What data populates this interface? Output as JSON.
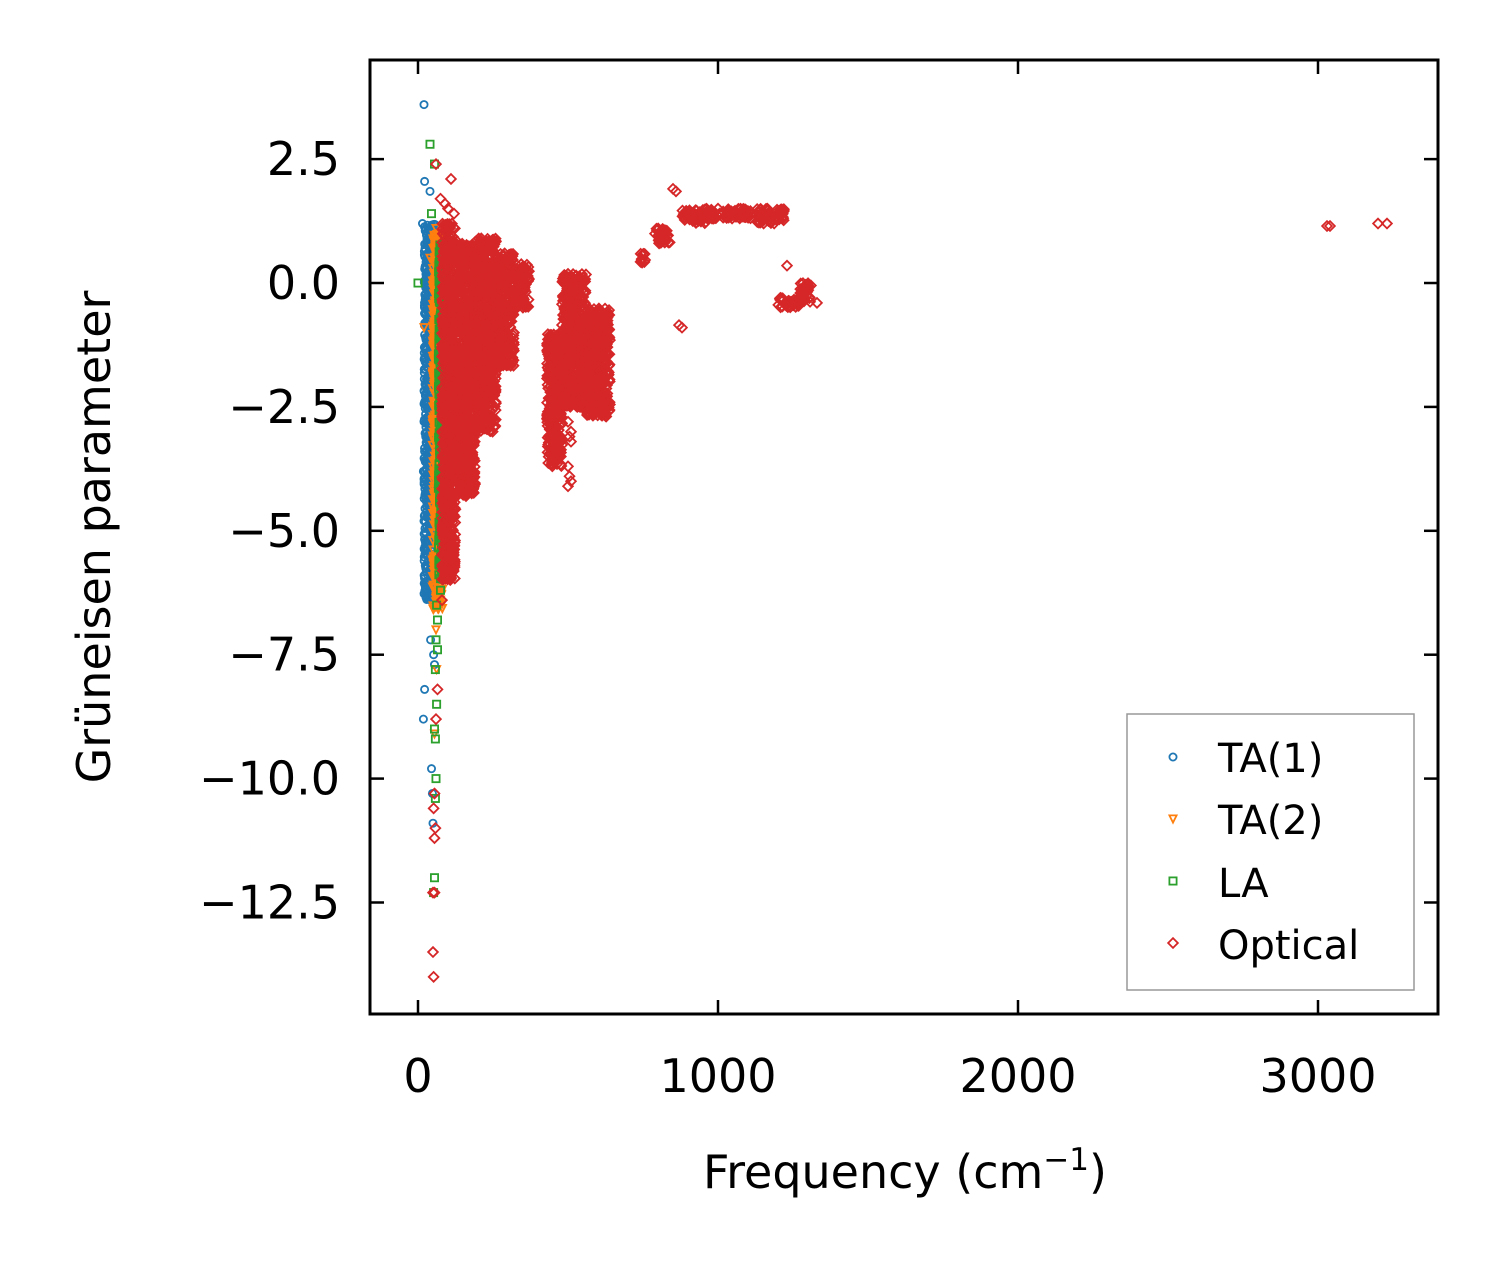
{
  "chart_data": {
    "type": "scatter",
    "title": "",
    "xlabel": "Frequency (cm",
    "xlabel_sup": "−1",
    "xlabel_close": ")",
    "ylabel": "Grüneisen parameter",
    "xlim": [
      -160,
      3400
    ],
    "ylim": [
      -14.75,
      4.5
    ],
    "x_ticks": [
      0,
      1000,
      2000,
      3000
    ],
    "x_tick_labels": [
      "0",
      "1000",
      "2000",
      "3000"
    ],
    "y_ticks": [
      2.5,
      0.0,
      -2.5,
      -5.0,
      -7.5,
      -10.0,
      -12.5
    ],
    "y_tick_labels": [
      "2.5",
      "0.0",
      "−2.5",
      "−5.0",
      "−7.5",
      "−10.0",
      "−12.5"
    ],
    "grid": false,
    "legend_position": "bottom-right",
    "series": [
      {
        "name": "TA(1)",
        "marker": "circle",
        "color": "#1f77b4",
        "points": [
          [
            20,
            3.6
          ],
          [
            22,
            2.05
          ],
          [
            40,
            1.85
          ],
          [
            15,
            1.2
          ],
          [
            25,
            1.1
          ],
          [
            35,
            0.8
          ],
          [
            30,
            0.3
          ],
          [
            45,
            0.05
          ],
          [
            25,
            -0.3
          ],
          [
            50,
            -0.5
          ],
          [
            30,
            -0.8
          ],
          [
            55,
            -1.0
          ],
          [
            28,
            -1.3
          ],
          [
            45,
            -1.6
          ],
          [
            35,
            -1.9
          ],
          [
            48,
            -2.2
          ],
          [
            38,
            -2.6
          ],
          [
            30,
            -3.0
          ],
          [
            52,
            -3.2
          ],
          [
            22,
            -3.4
          ],
          [
            44,
            -3.7
          ],
          [
            18,
            -3.8
          ],
          [
            40,
            -4.2
          ],
          [
            30,
            -4.6
          ],
          [
            48,
            -4.8
          ],
          [
            20,
            -4.8
          ],
          [
            35,
            -5.2
          ],
          [
            45,
            -5.5
          ],
          [
            38,
            -5.8
          ],
          [
            28,
            -6.2
          ],
          [
            50,
            -6.3
          ],
          [
            42,
            -7.2
          ],
          [
            52,
            -7.5
          ],
          [
            55,
            -7.7
          ],
          [
            22,
            -8.2
          ],
          [
            18,
            -8.8
          ],
          [
            45,
            -9.8
          ],
          [
            48,
            -10.3
          ],
          [
            50,
            -10.9
          ]
        ],
        "bands": [
          [
            20,
            60,
            -6.4,
            1.2
          ]
        ]
      },
      {
        "name": "TA(2)",
        "marker": "triangle-down",
        "color": "#ff7f0e",
        "points": [
          [
            60,
            1.1
          ],
          [
            40,
            0.5
          ],
          [
            70,
            0.2
          ],
          [
            20,
            -0.9
          ],
          [
            65,
            -2.0
          ],
          [
            70,
            -3.5
          ],
          [
            68,
            -4.8
          ],
          [
            72,
            -5.8
          ],
          [
            66,
            -6.4
          ],
          [
            60,
            -7.0
          ],
          [
            62,
            -7.8
          ],
          [
            55,
            -9.1
          ]
        ],
        "bands": [
          [
            48,
            82,
            -6.6,
            1.0
          ]
        ]
      },
      {
        "name": "LA",
        "marker": "square",
        "color": "#2ca02c",
        "points": [
          [
            40,
            2.8
          ],
          [
            55,
            2.4
          ],
          [
            45,
            1.4
          ],
          [
            0,
            0.0
          ],
          [
            90,
            -0.8
          ],
          [
            85,
            -2.5
          ],
          [
            80,
            -4.5
          ],
          [
            75,
            -6.2
          ],
          [
            62,
            -6.5
          ],
          [
            65,
            -6.8
          ],
          [
            60,
            -7.2
          ],
          [
            65,
            -7.4
          ],
          [
            58,
            -7.8
          ],
          [
            62,
            -8.5
          ],
          [
            55,
            -9.0
          ],
          [
            58,
            -9.2
          ],
          [
            60,
            -10.0
          ],
          [
            58,
            -10.4
          ],
          [
            55,
            -12.0
          ],
          [
            52,
            -12.3
          ]
        ],
        "bands": [
          [
            68,
            95,
            -6.0,
            0.8
          ]
        ]
      },
      {
        "name": "Optical",
        "marker": "diamond",
        "color": "#d62728",
        "points": [
          [
            60,
            2.4
          ],
          [
            110,
            2.1
          ],
          [
            75,
            1.7
          ],
          [
            90,
            1.6
          ],
          [
            100,
            1.5
          ],
          [
            120,
            1.4
          ],
          [
            80,
            -6.4
          ],
          [
            65,
            -8.2
          ],
          [
            60,
            -8.8
          ],
          [
            55,
            -10.3
          ],
          [
            52,
            -10.6
          ],
          [
            58,
            -11.0
          ],
          [
            55,
            -11.2
          ],
          [
            50,
            -12.3
          ],
          [
            55,
            -12.3
          ],
          [
            50,
            -13.5
          ],
          [
            52,
            -14.0
          ],
          [
            150,
            -3.5
          ],
          [
            160,
            -3.7
          ],
          [
            130,
            -4.0
          ],
          [
            140,
            -4.2
          ],
          [
            160,
            -4.3
          ],
          [
            500,
            -2.8
          ],
          [
            510,
            -3.0
          ],
          [
            505,
            -3.1
          ],
          [
            510,
            -3.2
          ],
          [
            500,
            -3.7
          ],
          [
            505,
            -3.9
          ],
          [
            510,
            -4.0
          ],
          [
            500,
            -4.1
          ],
          [
            490,
            -2.3
          ],
          [
            850,
            1.9
          ],
          [
            860,
            1.85
          ],
          [
            870,
            -0.85
          ],
          [
            880,
            -0.9
          ],
          [
            1000,
            1.5
          ],
          [
            1100,
            1.45
          ],
          [
            1230,
            0.35
          ],
          [
            1280,
            -0.2
          ],
          [
            1330,
            -0.4
          ],
          [
            3030,
            1.15
          ],
          [
            3040,
            1.15
          ],
          [
            3200,
            1.2
          ],
          [
            3230,
            1.2
          ]
        ],
        "bands": [
          [
            80,
            125,
            -6.0,
            1.2
          ],
          [
            125,
            190,
            -4.3,
            0.8
          ],
          [
            190,
            260,
            -3.0,
            0.9
          ],
          [
            260,
            320,
            -1.7,
            0.6
          ],
          [
            320,
            370,
            -0.5,
            0.4
          ],
          [
            430,
            480,
            -3.7,
            -1.0
          ],
          [
            480,
            560,
            -2.5,
            0.2
          ],
          [
            560,
            640,
            -2.7,
            -0.5
          ],
          [
            740,
            760,
            0.4,
            0.6
          ],
          [
            790,
            840,
            0.8,
            1.1
          ],
          [
            880,
            960,
            1.2,
            1.5
          ],
          [
            960,
            1110,
            1.3,
            1.5
          ],
          [
            1130,
            1220,
            1.2,
            1.5
          ],
          [
            1200,
            1270,
            -0.5,
            -0.3
          ],
          [
            1270,
            1310,
            -0.4,
            0.0
          ]
        ]
      }
    ]
  }
}
